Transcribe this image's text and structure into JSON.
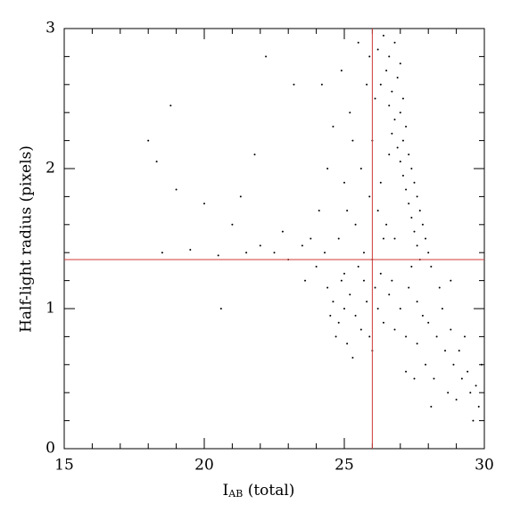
{
  "chart_data": {
    "type": "scatter",
    "xlabel": {
      "base": "I",
      "sub": "AB",
      "rest": " (total)"
    },
    "ylabel": "Half-light radius (pixels)",
    "xlim": [
      15,
      30
    ],
    "ylim": [
      0,
      3
    ],
    "xticks": [
      15,
      20,
      25,
      30
    ],
    "yticks": [
      0,
      1,
      2,
      3
    ],
    "xminorticks": [
      16,
      17,
      18,
      19,
      21,
      22,
      23,
      24,
      26,
      27,
      28,
      29
    ],
    "yminorticks": [
      0.2,
      0.4,
      0.6,
      0.8,
      1.2,
      1.4,
      1.6,
      1.8,
      2.2,
      2.4,
      2.6,
      2.8
    ],
    "reference_lines": {
      "x": 26,
      "y": 1.35,
      "color": "#d03a3a"
    },
    "series": [
      {
        "color": "#000000",
        "x": [
          26.4,
          26.8,
          26.2,
          26.6,
          27.0,
          26.5,
          26.9,
          26.3,
          26.7,
          27.1,
          26.6,
          27.0,
          26.8,
          27.2,
          26.7,
          27.1,
          26.9,
          27.3,
          27.0,
          27.4,
          27.1,
          27.5,
          27.2,
          27.6,
          27.3,
          27.7,
          27.4,
          27.8,
          27.5,
          27.9,
          27.6,
          28.0,
          27.7,
          27.4,
          28.1,
          25.5,
          25.8,
          25.2,
          26.0,
          25.6,
          24.9,
          25.9,
          26.2,
          25.4,
          26.4,
          25.0,
          24.6,
          26.1,
          25.7,
          26.3,
          24.8,
          25.3,
          26.5,
          24.4,
          25.1,
          26.6,
          24.2,
          25.9,
          26.0,
          26.8,
          25.0,
          25.4,
          25.8,
          24.8,
          25.2,
          26.2,
          25.6,
          24.6,
          26.6,
          27.0,
          25.9,
          25.1,
          26.4,
          24.5,
          27.3,
          25.7,
          26.8,
          24.9,
          26.0,
          27.6,
          25.3,
          26.3,
          24.4,
          27.8,
          25.5,
          24.7,
          26.7,
          25.0,
          27.2,
          26.1,
          28.0,
          28.3,
          28.6,
          28.9,
          29.2,
          29.5,
          29.8,
          28.5,
          28.8,
          29.1,
          29.4,
          29.7,
          27.9,
          28.2,
          28.7,
          29.0,
          29.6,
          27.5,
          28.4,
          28.8,
          29.3,
          27.6,
          29.9,
          28.1,
          27.2,
          22.5,
          23.0,
          23.5,
          24.0,
          22.0,
          21.5,
          20.5,
          19.5,
          18.5,
          23.8,
          24.3,
          22.8,
          21.0,
          20.0,
          18.0,
          18.3,
          19.0,
          21.8,
          23.2,
          22.2,
          20.6,
          23.6,
          21.3,
          24.1,
          18.8
        ],
        "values": [
          2.95,
          2.9,
          2.85,
          2.8,
          2.75,
          2.7,
          2.65,
          2.6,
          2.55,
          2.5,
          2.45,
          2.4,
          2.35,
          2.3,
          2.25,
          2.2,
          2.15,
          2.1,
          2.05,
          2.0,
          1.95,
          1.9,
          1.85,
          1.8,
          1.75,
          1.7,
          1.65,
          1.6,
          1.55,
          1.5,
          1.45,
          1.4,
          1.35,
          1.3,
          1.3,
          2.9,
          2.6,
          2.4,
          2.2,
          2.0,
          2.7,
          1.8,
          1.7,
          1.6,
          1.5,
          1.9,
          2.3,
          2.5,
          1.4,
          1.9,
          1.5,
          2.2,
          1.6,
          2.0,
          1.7,
          2.1,
          2.6,
          2.8,
          1.35,
          1.5,
          1.0,
          0.95,
          1.05,
          0.9,
          1.1,
          1.0,
          0.85,
          1.05,
          1.1,
          1.0,
          0.8,
          0.75,
          0.9,
          0.95,
          1.15,
          1.2,
          0.85,
          1.2,
          0.7,
          1.05,
          0.65,
          1.25,
          1.15,
          0.95,
          1.3,
          0.8,
          1.2,
          1.25,
          0.8,
          1.15,
          0.9,
          0.8,
          0.7,
          0.6,
          0.5,
          0.4,
          0.3,
          1.0,
          0.85,
          0.7,
          0.55,
          0.45,
          0.6,
          0.5,
          0.4,
          0.35,
          0.2,
          0.5,
          1.15,
          1.2,
          0.8,
          0.75,
          0.6,
          0.3,
          0.55,
          1.4,
          1.35,
          1.45,
          1.3,
          1.45,
          1.4,
          1.38,
          1.42,
          1.4,
          1.5,
          1.4,
          1.55,
          1.6,
          1.75,
          2.2,
          2.05,
          1.85,
          2.1,
          2.6,
          2.8,
          1.0,
          1.2,
          1.8,
          1.7,
          2.45
        ]
      }
    ]
  }
}
